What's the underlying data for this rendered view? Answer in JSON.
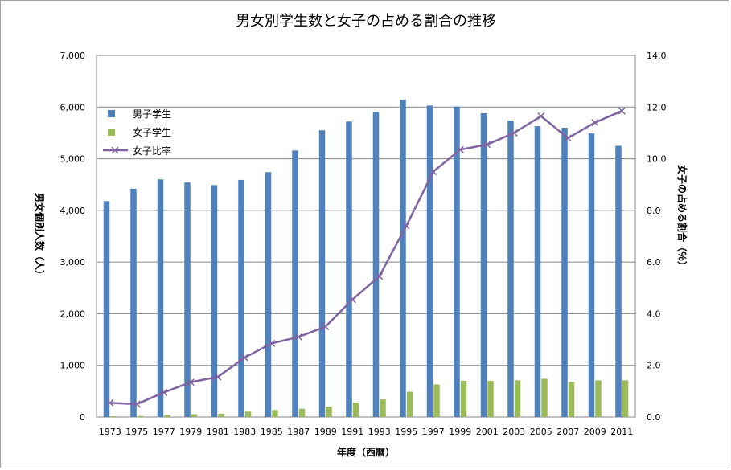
{
  "chart_data": {
    "type": "bar+line",
    "title": "男女別学生数と女子の占める割合の推移",
    "xlabel": "年度（西暦）",
    "ylabel_left": "男女個別人数（人）",
    "ylabel_right": "女子の占める割合（％）",
    "categories": [
      "1973",
      "1975",
      "1977",
      "1979",
      "1981",
      "1983",
      "1985",
      "1987",
      "1989",
      "1991",
      "1993",
      "1995",
      "1997",
      "1999",
      "2001",
      "2003",
      "2005",
      "2007",
      "2009",
      "2011"
    ],
    "left_ticks": [
      "0",
      "1,000",
      "2,000",
      "3,000",
      "4,000",
      "5,000",
      "6,000",
      "7,000"
    ],
    "right_ticks": [
      "0.0",
      "2.0",
      "4.0",
      "6.0",
      "8.0",
      "10.0",
      "12.0",
      "14.0"
    ],
    "ylim_left": [
      0,
      7000
    ],
    "ylim_right": [
      0,
      14
    ],
    "series": [
      {
        "name": "男子学生",
        "type": "bar",
        "axis": "left",
        "color": "#4f81bd",
        "values": [
          4180,
          4420,
          4600,
          4540,
          4490,
          4590,
          4740,
          5160,
          5550,
          5720,
          5910,
          6140,
          6030,
          6010,
          5880,
          5740,
          5630,
          5600,
          5490,
          5250
        ]
      },
      {
        "name": "女子学生",
        "type": "bar",
        "axis": "left",
        "color": "#9bbb59",
        "values": [
          15,
          20,
          40,
          55,
          65,
          105,
          135,
          160,
          200,
          280,
          340,
          490,
          630,
          700,
          700,
          710,
          740,
          680,
          710,
          710
        ]
      },
      {
        "name": "女子比率",
        "type": "line",
        "axis": "right",
        "color": "#8064a2",
        "values": [
          0.55,
          0.5,
          0.95,
          1.35,
          1.55,
          2.3,
          2.85,
          3.1,
          3.5,
          4.55,
          5.45,
          7.4,
          9.5,
          10.35,
          10.55,
          11.0,
          11.65,
          10.8,
          11.4,
          11.85
        ]
      }
    ],
    "legend_position": "top-left-inside"
  }
}
